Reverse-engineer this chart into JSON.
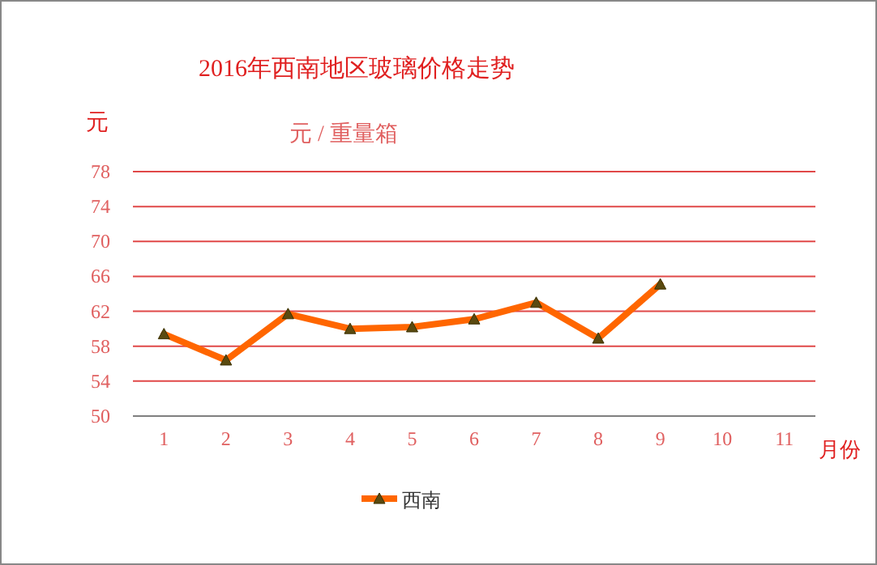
{
  "chart_data": {
    "type": "line",
    "title": "2016年西南地区玻璃价格走势",
    "subtitle": "元 / 重量箱",
    "ylabel": "元",
    "xlabel": "月份",
    "categories": [
      "1",
      "2",
      "3",
      "4",
      "5",
      "6",
      "7",
      "8",
      "9",
      "10",
      "11"
    ],
    "series": [
      {
        "name": "西南",
        "color": "#ff6600",
        "values": [
          59.4,
          56.4,
          61.7,
          60.0,
          60.2,
          61.1,
          63.0,
          58.9,
          65.1,
          null,
          null
        ]
      }
    ],
    "ylim": [
      50,
      78
    ],
    "yticks": [
      50,
      54,
      58,
      62,
      66,
      70,
      74,
      78
    ],
    "grid": "y",
    "legend": "bottom",
    "marker": "triangle",
    "line_style": "solid"
  }
}
